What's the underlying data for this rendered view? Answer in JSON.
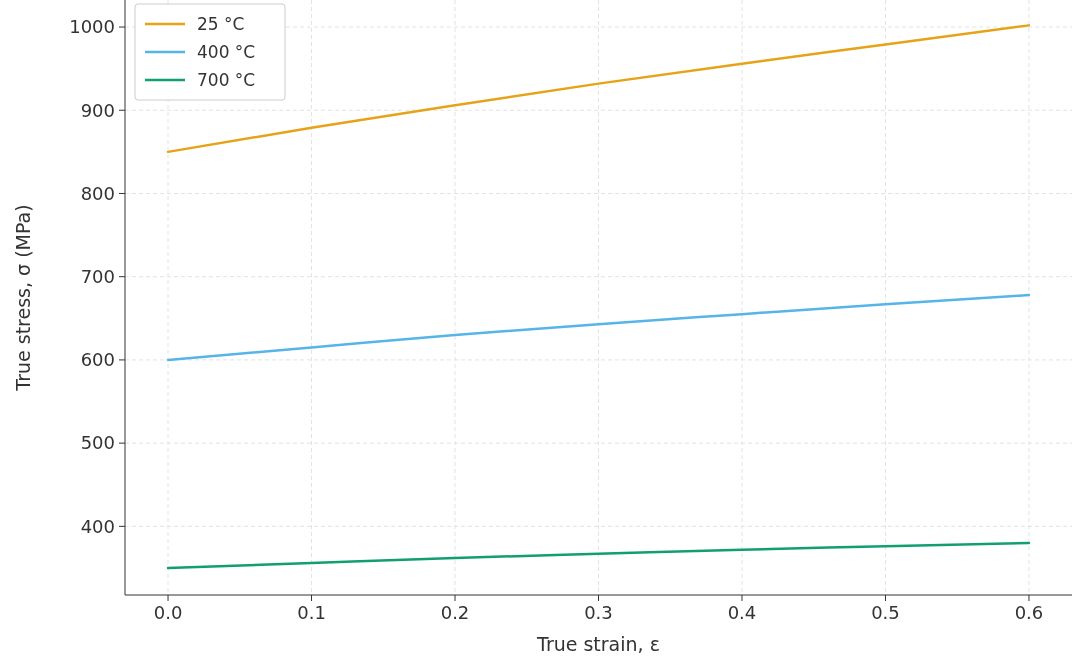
{
  "chart_data": {
    "type": "line",
    "xlabel": "True strain, ε",
    "ylabel": "True stress, σ (MPa)",
    "x": [
      0,
      0.1,
      0.2,
      0.3,
      0.4,
      0.5,
      0.6
    ],
    "series": [
      {
        "name": "25 °C",
        "color": "#e6a317",
        "values": [
          850,
          879,
          906,
          932,
          956,
          979,
          1002
        ]
      },
      {
        "name": "400 °C",
        "color": "#56b4e9",
        "values": [
          600,
          615,
          630,
          643,
          655,
          667,
          678
        ]
      },
      {
        "name": "700 °C",
        "color": "#129e73",
        "values": [
          350,
          356,
          362,
          367,
          372,
          376,
          380
        ]
      }
    ],
    "xlim": [
      -0.03,
      0.63
    ],
    "ylim": [
      317.5,
      1032.5
    ],
    "xticks": [
      {
        "value": 0,
        "label": "0.0"
      },
      0.1,
      0.2,
      0.3,
      0.4,
      0.5,
      0.6
    ],
    "yticks": [
      400,
      500,
      600,
      700,
      800,
      900,
      1000
    ],
    "grid": true,
    "legend": "top left",
    "line_style": "solid",
    "marker": "none"
  }
}
